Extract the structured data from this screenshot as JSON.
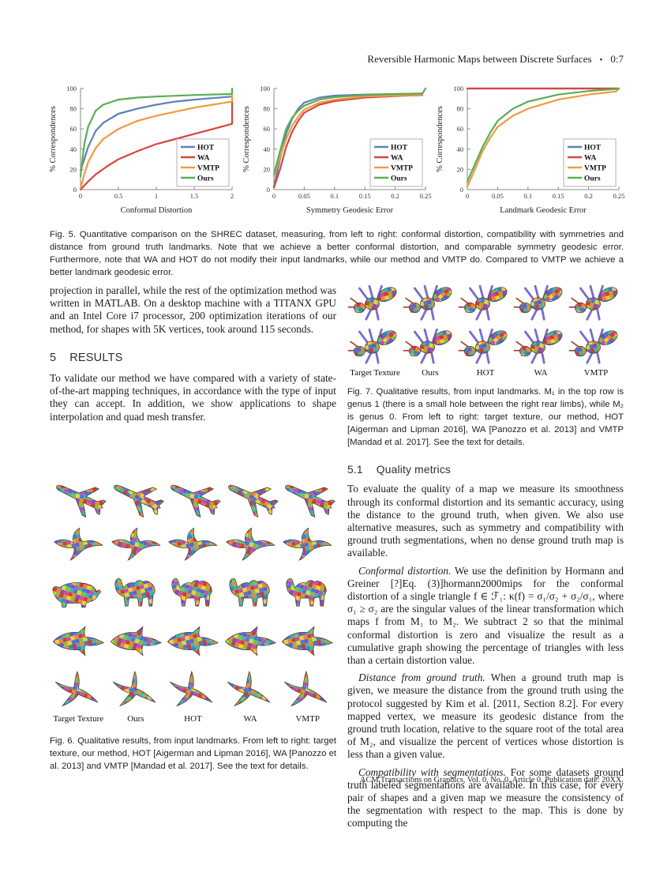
{
  "header": {
    "title": "Reversible Harmonic Maps between Discrete Surfaces",
    "bullet": "•",
    "page_number": "0:7"
  },
  "chart_data": [
    {
      "type": "line",
      "xlabel": "Conformal Distortion",
      "ylabel": "% Correspondences",
      "xlim": [
        0,
        2
      ],
      "ylim": [
        0,
        100
      ],
      "xticks": [
        0,
        0.5,
        1,
        1.5,
        2
      ],
      "xtick_labels": [
        "0",
        "0.5",
        "1",
        "1.5",
        "2"
      ],
      "yticks": [
        0,
        20,
        40,
        60,
        80,
        100
      ],
      "legend_position": "bottom-right",
      "series": [
        {
          "name": "HOT",
          "color": "#5b82b4",
          "x": [
            0,
            0.05,
            0.1,
            0.2,
            0.3,
            0.5,
            0.75,
            1,
            1.25,
            1.5,
            2
          ],
          "y": [
            19,
            30,
            42,
            58,
            66,
            75,
            80,
            84,
            87,
            89,
            92
          ]
        },
        {
          "name": "WA",
          "color": "#d64541",
          "x": [
            0,
            0.1,
            0.2,
            0.35,
            0.5,
            0.75,
            1,
            1.25,
            1.5,
            1.75,
            2,
            2
          ],
          "y": [
            0,
            8,
            15,
            23,
            30,
            38,
            45,
            50,
            55,
            60,
            65,
            88
          ]
        },
        {
          "name": "VMTP",
          "color": "#ef9b3e",
          "x": [
            0,
            0.05,
            0.1,
            0.2,
            0.3,
            0.5,
            0.75,
            1,
            1.25,
            1.5,
            2,
            2
          ],
          "y": [
            1,
            15,
            27,
            41,
            50,
            60,
            68,
            73,
            77,
            81,
            87,
            93
          ]
        },
        {
          "name": "Ours",
          "color": "#5aad56",
          "x": [
            0,
            0.05,
            0.1,
            0.2,
            0.3,
            0.5,
            0.75,
            1,
            1.5,
            2,
            2
          ],
          "y": [
            13,
            45,
            62,
            78,
            84,
            89,
            91,
            92,
            93.5,
            94.5,
            100
          ]
        }
      ]
    },
    {
      "type": "line",
      "xlabel": "Symmetry Geodesic Error",
      "ylabel": "% Correspondences",
      "xlim": [
        0,
        0.25
      ],
      "ylim": [
        0,
        100
      ],
      "xticks": [
        0,
        0.05,
        0.1,
        0.15,
        0.2,
        0.25
      ],
      "xtick_labels": [
        "0",
        "0.05",
        "0.1",
        "0.15",
        "0.2",
        "0.25"
      ],
      "yticks": [
        0,
        20,
        40,
        60,
        80,
        100
      ],
      "legend_position": "bottom-right",
      "series": [
        {
          "name": "HOT",
          "color": "#5b82b4",
          "x": [
            0,
            0.01,
            0.02,
            0.03,
            0.04,
            0.05,
            0.075,
            0.1,
            0.15,
            0.2,
            0.245
          ],
          "y": [
            3,
            30,
            55,
            70,
            80,
            86,
            91,
            93,
            94,
            94.5,
            95
          ]
        },
        {
          "name": "WA",
          "color": "#d64541",
          "x": [
            0,
            0.01,
            0.02,
            0.03,
            0.04,
            0.05,
            0.075,
            0.1,
            0.15,
            0.2,
            0.245
          ],
          "y": [
            2,
            20,
            42,
            57,
            68,
            76,
            84,
            87.5,
            91,
            92.5,
            93.5
          ]
        },
        {
          "name": "VMTP",
          "color": "#ef9b3e",
          "x": [
            0,
            0.01,
            0.02,
            0.03,
            0.04,
            0.05,
            0.075,
            0.1,
            0.15,
            0.2,
            0.245
          ],
          "y": [
            13,
            32,
            50,
            63,
            72,
            79,
            86,
            89,
            92,
            93,
            94
          ]
        },
        {
          "name": "Ours",
          "color": "#5aad56",
          "x": [
            0,
            0.01,
            0.02,
            0.03,
            0.04,
            0.05,
            0.075,
            0.1,
            0.15,
            0.2,
            0.245,
            0.25
          ],
          "y": [
            15,
            38,
            60,
            71,
            78,
            83,
            89,
            91.5,
            93.5,
            94.5,
            95,
            100
          ]
        }
      ]
    },
    {
      "type": "line",
      "xlabel": "Landmark Geodesic Error",
      "ylabel": "% Correspondences",
      "xlim": [
        0,
        0.25
      ],
      "ylim": [
        0,
        100
      ],
      "xticks": [
        0,
        0.05,
        0.1,
        0.15,
        0.2,
        0.25
      ],
      "xtick_labels": [
        "0",
        "0.05",
        "0.1",
        "0.15",
        "0.2",
        "0.25"
      ],
      "yticks": [
        0,
        20,
        40,
        60,
        80,
        100
      ],
      "legend_position": "bottom-right",
      "series": [
        {
          "name": "HOT",
          "color": "#5b82b4",
          "x": [
            0,
            0.25
          ],
          "y": [
            100,
            100
          ]
        },
        {
          "name": "WA",
          "color": "#d64541",
          "x": [
            0,
            0.25
          ],
          "y": [
            100,
            100
          ]
        },
        {
          "name": "VMTP",
          "color": "#ef9b3e",
          "x": [
            0,
            0.0125,
            0.025,
            0.0375,
            0.05,
            0.075,
            0.1,
            0.15,
            0.2,
            0.245,
            0.25
          ],
          "y": [
            3,
            20,
            38,
            51,
            62,
            73,
            80,
            89,
            94,
            97,
            100
          ]
        },
        {
          "name": "Ours",
          "color": "#5aad56",
          "x": [
            0,
            0.0125,
            0.025,
            0.0375,
            0.05,
            0.075,
            0.1,
            0.15,
            0.2,
            0.245,
            0.25
          ],
          "y": [
            8,
            25,
            42,
            56,
            68,
            80,
            87,
            94,
            97.5,
            99.5,
            100
          ]
        }
      ]
    }
  ],
  "figures": {
    "fig5_caption": "Fig. 5.  Quantitative comparison on the SHREC dataset, measuring, from left to right: conformal distortion, compatibility with symmetries and distance from ground truth landmarks. Note that we achieve a better conformal distortion, and comparable symmetry geodesic error. Furthermore, note that WA and HOT do not modify their input landmarks, while our method and VMTP do. Compared to VMTP we achieve a better landmark geodesic error.",
    "fig6": {
      "labels": [
        "Target Texture",
        "Ours",
        "HOT",
        "WA",
        "VMTP"
      ],
      "rows": [
        {
          "shape": "airplane",
          "target_shape": "airplane"
        },
        {
          "shape": "bird",
          "target_shape": "bird"
        },
        {
          "shape": "camel",
          "target_shape": "pig"
        },
        {
          "shape": "fish",
          "target_shape": "fish"
        },
        {
          "shape": "branch",
          "target_shape": "branch"
        }
      ],
      "caption": "Fig. 6.  Qualitative results, from input landmarks. From left to right: target texture, our method, HOT [Aigerman and Lipman 2016], WA [Panozzo et al. 2013] and VMTP [Mandad et al. 2017]. See the text for details."
    },
    "fig7": {
      "labels": [
        "Target Texture",
        "Ours",
        "HOT",
        "WA",
        "VMTP"
      ],
      "rows": [
        {
          "shape": "ant"
        },
        {
          "shape": "ant"
        }
      ],
      "caption": "Fig. 7.  Qualitative results, from input landmarks. M₁ in the top row is genus 1 (there is a small hole between the right rear limbs), while M₂ is genus 0. From left to right: target texture, our method, HOT [Aigerman and Lipman 2016], WA [Panozzo et al. 2013] and VMTP [Mandad et al. 2017]. See the text for details."
    }
  },
  "left_column": {
    "para1": "projection in parallel, while the rest of the optimization method was written in MATLAB. On a desktop machine with a TITANX GPU and an Intel Core i7 processor, 200 optimization iterations of our method, for shapes with 5K vertices, took around 115 seconds."
  },
  "sections": {
    "results": {
      "number": "5",
      "title": "RESULTS",
      "para": "To validate our method we have compared with a variety of state-of-the-art mapping techniques, in accordance with the type of input they can accept. In addition, we show applications to shape interpolation and quad mesh transfer."
    },
    "quality": {
      "number": "5.1",
      "title": "Quality metrics",
      "para": "To evaluate the quality of a map we measure its smoothness through its conformal distortion and its semantic accuracy, using the distance to the ground truth, when given. We also use alternative measures, such as symmetry and compatibility with ground truth segmentations, when no dense ground truth map is available."
    }
  },
  "paragraphs": {
    "conformal": {
      "lead": "Conformal distortion.",
      "text": "We use the definition by Hormann and Greiner [?]Eq. (3)]hormann2000mips for the conformal distortion of a single triangle f ∈ ℱ₁: κ(f) = σ₁/σ₂ + σ₂/σ₁, where σ₁ ≥ σ₂ are the singular values of the linear transformation which maps f from M₁ to M₂. We subtract 2 so that the minimal conformal distortion is zero and visualize the result as a cumulative graph showing the percentage of triangles with less than a certain distortion value."
    },
    "distance": {
      "lead": "Distance from ground truth.",
      "text": "When a ground truth map is given, we measure the distance from the ground truth using the protocol suggested by Kim et al. [2011, Section 8.2]. For every mapped vertex, we measure its geodesic distance from the ground truth location, relative to the square root of the total area of M₂, and visualize the percent of vertices whose distortion is less than a given value."
    },
    "segmentation": {
      "lead": "Compatibility with segmentations.",
      "text": "For some datasets ground truth labeled segmentations are available. In this case, for every pair of shapes and a given map we measure the consistency of the segmentation with respect to the map. This is done by computing the"
    }
  },
  "footer": {
    "text": "ACM Transactions on Graphics, Vol. 0, No. 0, Article 0. Publication date: 20XX."
  }
}
